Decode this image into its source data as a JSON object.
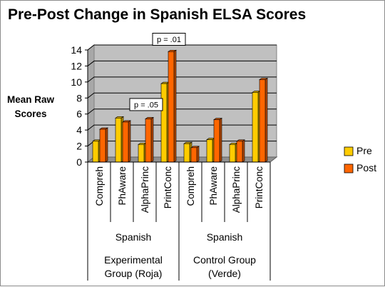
{
  "chart_data": {
    "type": "bar",
    "title": "Pre-Post Change in Spanish ELSA Scores",
    "ylabel": "Mean Raw Scores",
    "ylim": [
      0,
      14
    ],
    "yticks": [
      0,
      2,
      4,
      6,
      8,
      10,
      12,
      14
    ],
    "grid": true,
    "legend_position": "right",
    "categories": [
      "Compreh",
      "PhAware",
      "AlphaPrinc",
      "PrintConc",
      "Compreh",
      "PhAware",
      "AlphaPrinc",
      "PrintConc"
    ],
    "groups": [
      {
        "level1": "Spanish",
        "level2": [
          "Experimental",
          "Group (Roja)"
        ],
        "span": [
          0,
          3
        ]
      },
      {
        "level1": "Spanish",
        "level2": [
          "Control Group",
          "(Verde)"
        ],
        "span": [
          4,
          7
        ]
      }
    ],
    "series": [
      {
        "name": "Pre",
        "color": "#ffcc00",
        "values": [
          2.6,
          5.5,
          2.2,
          9.8,
          2.3,
          2.8,
          2.2,
          8.7
        ]
      },
      {
        "name": "Post",
        "color": "#ff6600",
        "values": [
          4.1,
          5.0,
          5.4,
          13.8,
          1.8,
          5.3,
          2.6,
          10.3
        ]
      }
    ],
    "annotations": [
      {
        "text": "p = .05",
        "category_index": 2
      },
      {
        "text": "p = .01",
        "category_index": 3
      }
    ]
  }
}
